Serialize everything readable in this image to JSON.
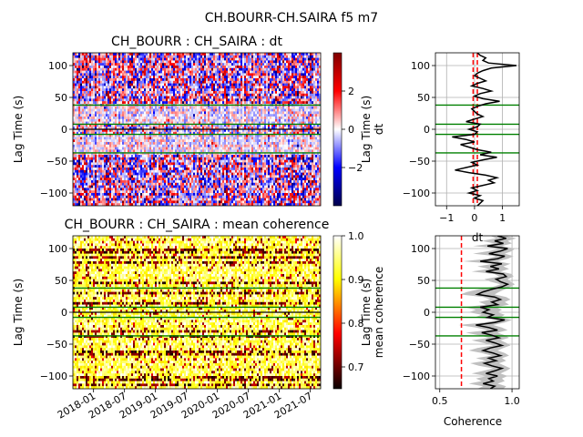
{
  "figure": {
    "suptitle": "CH.BOURR-CH.SAIRA f5 m7"
  },
  "chart_data": [
    {
      "type": "heatmap",
      "title": "CH_BOURR : CH_SAIRA : dt",
      "xlabel": "",
      "ylabel": "Lag Time (s)",
      "ylim": [
        -120,
        120
      ],
      "yticks": [
        "100",
        "50",
        "0",
        "−50",
        "−100"
      ],
      "yticks_values": [
        100,
        50,
        0,
        -50,
        -100
      ],
      "colormap": "seismic",
      "colorbar": {
        "label": "dt",
        "range": [
          -4,
          4
        ],
        "ticks": [
          "2",
          "0",
          "−2"
        ],
        "ticks_values": [
          2,
          0,
          -2
        ]
      },
      "hlines_green": [
        38,
        8,
        -8,
        -37
      ],
      "hlines_black": [
        0
      ]
    },
    {
      "type": "line",
      "title": "",
      "xlabel": "dt",
      "ylabel": "Lag Time (s)",
      "xlim": [
        -1.4,
        1.6
      ],
      "ylim": [
        -120,
        120
      ],
      "xticks": [
        "−1",
        "0",
        "1"
      ],
      "xticks_values": [
        -1,
        0,
        1
      ],
      "yticks": [
        "100",
        "50",
        "0",
        "−50",
        "−100"
      ],
      "yticks_values": [
        100,
        50,
        0,
        -50,
        -100
      ],
      "grid": true,
      "vlines_red_dashed": [
        -0.05,
        0.1
      ],
      "hlines_green": [
        38,
        8,
        -8,
        -37
      ],
      "series": [
        {
          "x": [
            0.1,
            0.2,
            0.4,
            0.3,
            0.5,
            1.5,
            0.6,
            0.3,
            0.1,
            0.0,
            0.2,
            0.4,
            0.1,
            -0.1,
            0.3,
            0.6,
            0.2,
            0.0,
            0.3,
            0.9,
            0.4,
            0.1,
            -0.1,
            0.0,
            0.1,
            0.3,
            0.0,
            -0.3,
            0.2,
            0.1,
            -0.2,
            0.1,
            0.0,
            -0.8,
            -0.3,
            0.0,
            -0.5,
            -0.2,
            0.1,
            0.6,
            0.2,
            0.8,
            0.3,
            -0.1,
            0.1,
            -0.3,
            -0.7,
            -0.2,
            0.4,
            0.8,
            0.5,
            0.7,
            0.3,
            -0.1,
            0.1,
            -0.2,
            0.2,
            0.0,
            0.3,
            0.2,
            0.1
          ],
          "y": [
            120,
            116,
            112,
            108,
            104,
            100,
            96,
            92,
            88,
            84,
            80,
            76,
            72,
            68,
            64,
            60,
            56,
            52,
            48,
            44,
            40,
            36,
            32,
            28,
            24,
            20,
            16,
            12,
            8,
            4,
            0,
            -4,
            -8,
            -12,
            -16,
            -20,
            -24,
            -28,
            -32,
            -36,
            -40,
            -44,
            -48,
            -52,
            -56,
            -60,
            -64,
            -68,
            -72,
            -76,
            -80,
            -84,
            -88,
            -92,
            -96,
            -100,
            -104,
            -108,
            -112,
            -116,
            -120
          ]
        }
      ]
    },
    {
      "type": "heatmap",
      "title": "CH_BOURR : CH_SAIRA : mean coherence",
      "xlabel": "",
      "ylabel": "Lag Time (s)",
      "ylim": [
        -120,
        120
      ],
      "yticks": [
        "100",
        "50",
        "0",
        "−50",
        "−100"
      ],
      "yticks_values": [
        100,
        50,
        0,
        -50,
        -100
      ],
      "xticks": [
        "2018-01",
        "2018-07",
        "2019-01",
        "2019-07",
        "2020-01",
        "2020-07",
        "2021-01",
        "2021-07"
      ],
      "xlim": [
        "2017-09",
        "2021-09"
      ],
      "colormap": "hot",
      "colorbar": {
        "label": "mean coherence",
        "range": [
          0.65,
          1.0
        ],
        "ticks": [
          "1.0",
          "0.9",
          "0.8",
          "0.7"
        ],
        "ticks_values": [
          1.0,
          0.9,
          0.8,
          0.7
        ]
      },
      "hlines_green": [
        38,
        8,
        -8,
        -37
      ],
      "hlines_black": [
        0
      ]
    },
    {
      "type": "line",
      "title": "",
      "xlabel": "Coherence",
      "ylabel": "Lag Time (s)",
      "xlim": [
        0.47,
        1.05
      ],
      "ylim": [
        -120,
        120
      ],
      "xticks": [
        "0.5",
        "1.0"
      ],
      "xticks_values": [
        0.5,
        1.0
      ],
      "yticks": [
        "100",
        "50",
        "0",
        "−50",
        "−100"
      ],
      "yticks_values": [
        100,
        50,
        0,
        -50,
        -100
      ],
      "grid": true,
      "vlines_red_dashed": [
        0.65
      ],
      "hlines_green": [
        38,
        8,
        -8,
        -37
      ],
      "series": [
        {
          "x": [
            0.9,
            0.96,
            0.88,
            0.94,
            0.83,
            0.97,
            0.92,
            0.84,
            0.95,
            0.9,
            0.78,
            0.93,
            0.85,
            0.91,
            0.82,
            0.94,
            0.96,
            0.89,
            0.92,
            0.97,
            0.93,
            0.86,
            0.8,
            0.76,
            0.88,
            0.92,
            0.86,
            0.9,
            0.78,
            0.84,
            0.8,
            0.87,
            0.83,
            0.95,
            0.88,
            0.75,
            0.84,
            0.9,
            0.79,
            0.86,
            0.91,
            0.82,
            0.88,
            0.93,
            0.85,
            0.8,
            0.87,
            0.92,
            0.84,
            0.89,
            0.81,
            0.86,
            0.93,
            0.88,
            0.82,
            0.9,
            0.84,
            0.87,
            0.8,
            0.88,
            0.85
          ],
          "band_width": [
            0.05,
            0.07,
            0.09,
            0.06,
            0.1,
            0.05,
            0.08,
            0.11,
            0.06,
            0.07,
            0.12,
            0.06,
            0.09,
            0.07,
            0.1,
            0.06,
            0.05,
            0.08,
            0.07,
            0.05,
            0.06,
            0.09,
            0.11,
            0.12,
            0.08,
            0.07,
            0.09,
            0.08,
            0.11,
            0.09,
            0.1,
            0.08,
            0.09,
            0.05,
            0.07,
            0.12,
            0.09,
            0.07,
            0.11,
            0.09,
            0.07,
            0.1,
            0.08,
            0.06,
            0.09,
            0.1,
            0.08,
            0.06,
            0.09,
            0.07,
            0.1,
            0.09,
            0.06,
            0.08,
            0.1,
            0.07,
            0.09,
            0.08,
            0.1,
            0.08,
            0.09
          ],
          "y": [
            120,
            116,
            112,
            108,
            104,
            100,
            96,
            92,
            88,
            84,
            80,
            76,
            72,
            68,
            64,
            60,
            56,
            52,
            48,
            44,
            40,
            36,
            32,
            28,
            24,
            20,
            16,
            12,
            8,
            4,
            0,
            -4,
            -8,
            -12,
            -16,
            -20,
            -24,
            -28,
            -32,
            -36,
            -40,
            -44,
            -48,
            -52,
            -56,
            -60,
            -64,
            -68,
            -72,
            -76,
            -80,
            -84,
            -88,
            -92,
            -96,
            -100,
            -104,
            -108,
            -112,
            -116,
            -120
          ]
        }
      ]
    }
  ]
}
